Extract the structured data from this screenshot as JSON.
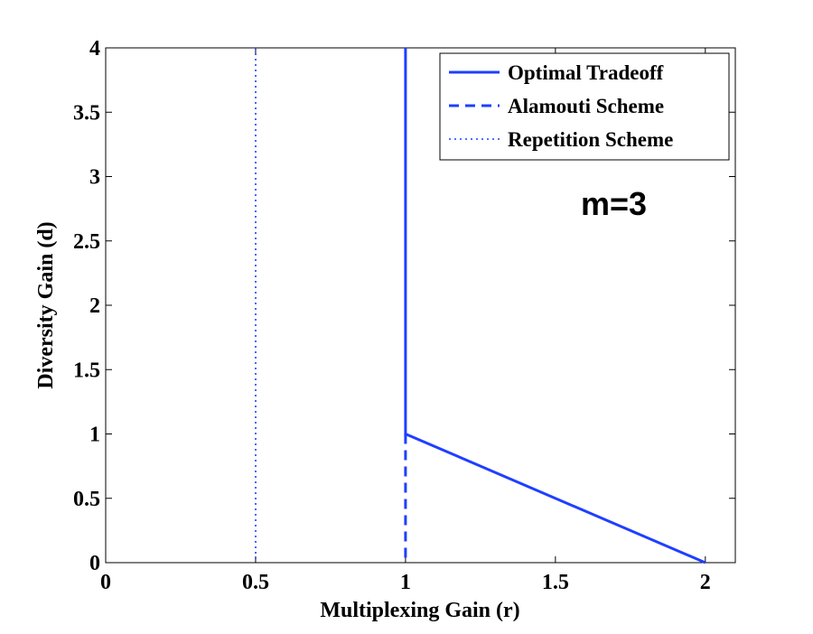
{
  "chart_data": {
    "type": "line",
    "xlabel": "Multiplexing Gain (r)",
    "ylabel": "Diversity Gain (d)",
    "xlim": [
      0,
      2.1
    ],
    "ylim": [
      0,
      4
    ],
    "xticks": [
      0,
      0.5,
      1,
      1.5,
      2
    ],
    "yticks": [
      0,
      0.5,
      1,
      1.5,
      2,
      2.5,
      3,
      3.5,
      4
    ],
    "xtick_labels": [
      "0",
      "0.5",
      "1",
      "1.5",
      "2"
    ],
    "ytick_labels": [
      "0",
      "0.5",
      "1",
      "1.5",
      "2",
      "2.5",
      "3",
      "3.5",
      "4"
    ],
    "grid": false,
    "legend_position": "top-right",
    "annotation": "m=3",
    "series": [
      {
        "name": "Optimal Tradeoff",
        "style": "solid",
        "color": "#1f3fff",
        "points": [
          [
            1,
            4
          ],
          [
            1,
            1
          ],
          [
            2,
            0
          ]
        ]
      },
      {
        "name": "Alamouti Scheme",
        "style": "dashed",
        "color": "#1f3fff",
        "points": [
          [
            1,
            1
          ],
          [
            1,
            0
          ]
        ]
      },
      {
        "name": "Repetition Scheme",
        "style": "dotted",
        "color": "#1f3fff",
        "points": [
          [
            0.5,
            4
          ],
          [
            0.5,
            0
          ]
        ]
      }
    ]
  }
}
